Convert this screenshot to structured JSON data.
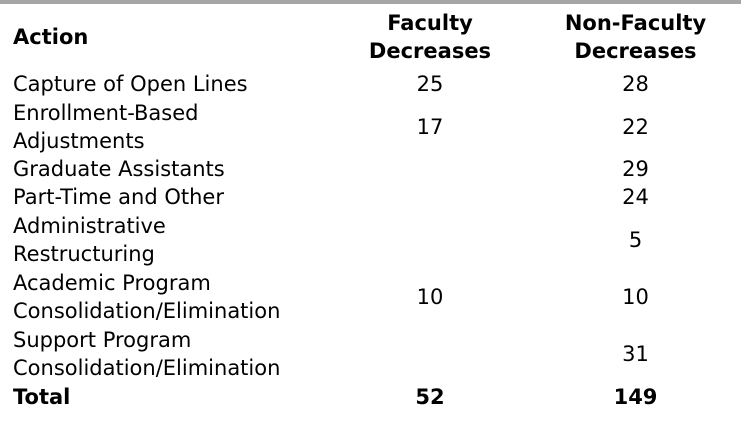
{
  "colors": {
    "top_bar": "#a6a6a6",
    "text": "#000000",
    "background": "#ffffff"
  },
  "table": {
    "headers": {
      "action": "Action",
      "faculty": "Faculty\nDecreases",
      "nonfaculty": "Non-Faculty\nDecreases"
    },
    "rows": [
      {
        "action": "Capture of Open Lines",
        "faculty": "25",
        "nonfaculty": "28"
      },
      {
        "action": "Enrollment-Based\nAdjustments",
        "faculty": "17",
        "nonfaculty": "22"
      },
      {
        "action": "Graduate Assistants",
        "faculty": "",
        "nonfaculty": "29"
      },
      {
        "action": "Part-Time and Other",
        "faculty": "",
        "nonfaculty": "24"
      },
      {
        "action": "Administrative\nRestructuring",
        "faculty": "",
        "nonfaculty": "5"
      },
      {
        "action": "Academic Program\nConsolidation/Elimination",
        "faculty": "10",
        "nonfaculty": "10"
      },
      {
        "action": "Support Program\nConsolidation/Elimination",
        "faculty": "",
        "nonfaculty": "31"
      }
    ],
    "total": {
      "action": "Total",
      "faculty": "52",
      "nonfaculty": "149"
    }
  }
}
